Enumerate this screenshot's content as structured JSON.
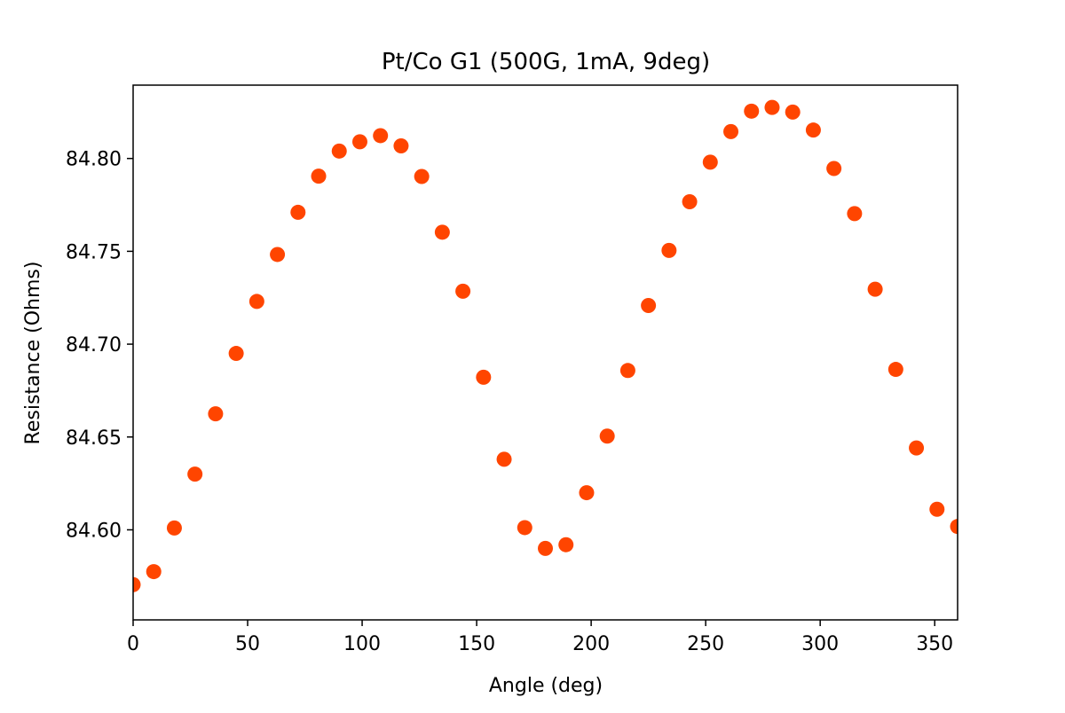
{
  "chart_data": {
    "type": "scatter",
    "title": "Pt/Co G1 (500G, 1mA, 9deg)",
    "xlabel": "Angle (deg)",
    "ylabel": "Resistance (Ohms)",
    "xlim": [
      0,
      360
    ],
    "ylim": [
      84.5515,
      84.8395
    ],
    "xticks": [
      0,
      50,
      100,
      150,
      200,
      250,
      300,
      350
    ],
    "yticks": [
      84.6,
      84.65,
      84.7,
      84.75,
      84.8
    ],
    "xtick_labels": [
      "0",
      "50",
      "100",
      "150",
      "200",
      "250",
      "300",
      "350"
    ],
    "ytick_labels": [
      "84.60",
      "84.65",
      "84.70",
      "84.75",
      "84.80"
    ],
    "grid": false,
    "marker_color": "#ff4500",
    "series": [
      {
        "x": [
          0,
          9,
          18,
          27,
          36,
          45,
          54,
          63,
          72,
          81,
          90,
          99,
          108,
          117,
          126,
          135,
          144,
          153,
          162,
          171,
          180,
          189,
          198,
          207,
          216,
          225,
          234,
          243,
          252,
          261,
          270,
          279,
          288,
          297,
          306,
          315,
          324,
          333,
          342,
          351,
          360
        ],
        "y": [
          84.5705,
          84.5775,
          84.601,
          84.63,
          84.6625,
          84.695,
          84.723,
          84.7483,
          84.771,
          84.7905,
          84.804,
          84.809,
          84.8123,
          84.8068,
          84.7903,
          84.7603,
          84.7285,
          84.6822,
          84.638,
          84.6012,
          84.59,
          84.592,
          84.62,
          84.6505,
          84.6858,
          84.7208,
          84.7505,
          84.7767,
          84.798,
          84.8145,
          84.8255,
          84.8275,
          84.825,
          84.8153,
          84.7946,
          84.7703,
          84.7296,
          84.6864,
          84.6441,
          84.6111,
          84.6018
        ]
      }
    ]
  }
}
